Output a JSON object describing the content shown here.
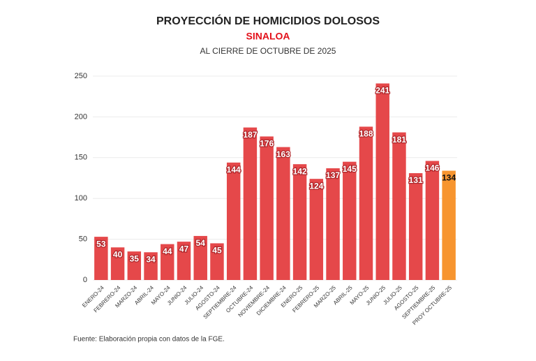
{
  "chart_data": {
    "type": "bar",
    "title": "PROYECCIÓN DE HOMICIDIOS DOLOSOS",
    "subtitle": "SINALOA",
    "note": "AL CIERRE DE OCTUBRE DE 2025",
    "source": "Fuente: Elaboración propia con datos de la FGE.",
    "categories": [
      "ENERO-24",
      "FEBRERO-24",
      "MARZO-24",
      "ABRIL-24",
      "MAYO-24",
      "JUNIO-24",
      "JULIO-24",
      "AGOSTO-24",
      "SEPTIEMBRE-24",
      "OCTUBRE-24",
      "NOVIEMBRE-24",
      "DICIEMBRE-24",
      "ENERO-25",
      "FEBRERO-25",
      "MARZO-25",
      "ABRIL-25",
      "MAYO-25",
      "JUNIO-25",
      "JULIO-25",
      "AGOSTO-25",
      "SEPTIEMBRE-25",
      "PROY OCTUBRE-25"
    ],
    "values": [
      53,
      40,
      35,
      34,
      44,
      47,
      54,
      45,
      144,
      187,
      176,
      163,
      142,
      124,
      137,
      145,
      188,
      241,
      181,
      131,
      146,
      134
    ],
    "colors": [
      "#e5484a",
      "#e5484a",
      "#e5484a",
      "#e5484a",
      "#e5484a",
      "#e5484a",
      "#e5484a",
      "#e5484a",
      "#e5484a",
      "#e5484a",
      "#e5484a",
      "#e5484a",
      "#e5484a",
      "#e5484a",
      "#e5484a",
      "#e5484a",
      "#e5484a",
      "#e5484a",
      "#e5484a",
      "#e5484a",
      "#e5484a",
      "#f7952f"
    ],
    "label_colors": [
      "#ffffff",
      "#ffffff",
      "#ffffff",
      "#ffffff",
      "#ffffff",
      "#ffffff",
      "#ffffff",
      "#ffffff",
      "#ffffff",
      "#ffffff",
      "#ffffff",
      "#ffffff",
      "#ffffff",
      "#ffffff",
      "#ffffff",
      "#ffffff",
      "#ffffff",
      "#ffffff",
      "#ffffff",
      "#ffffff",
      "#ffffff",
      "#111111"
    ],
    "ylim": [
      0,
      250
    ],
    "yticks": [
      0,
      50,
      100,
      150,
      200,
      250
    ],
    "grid": true
  }
}
